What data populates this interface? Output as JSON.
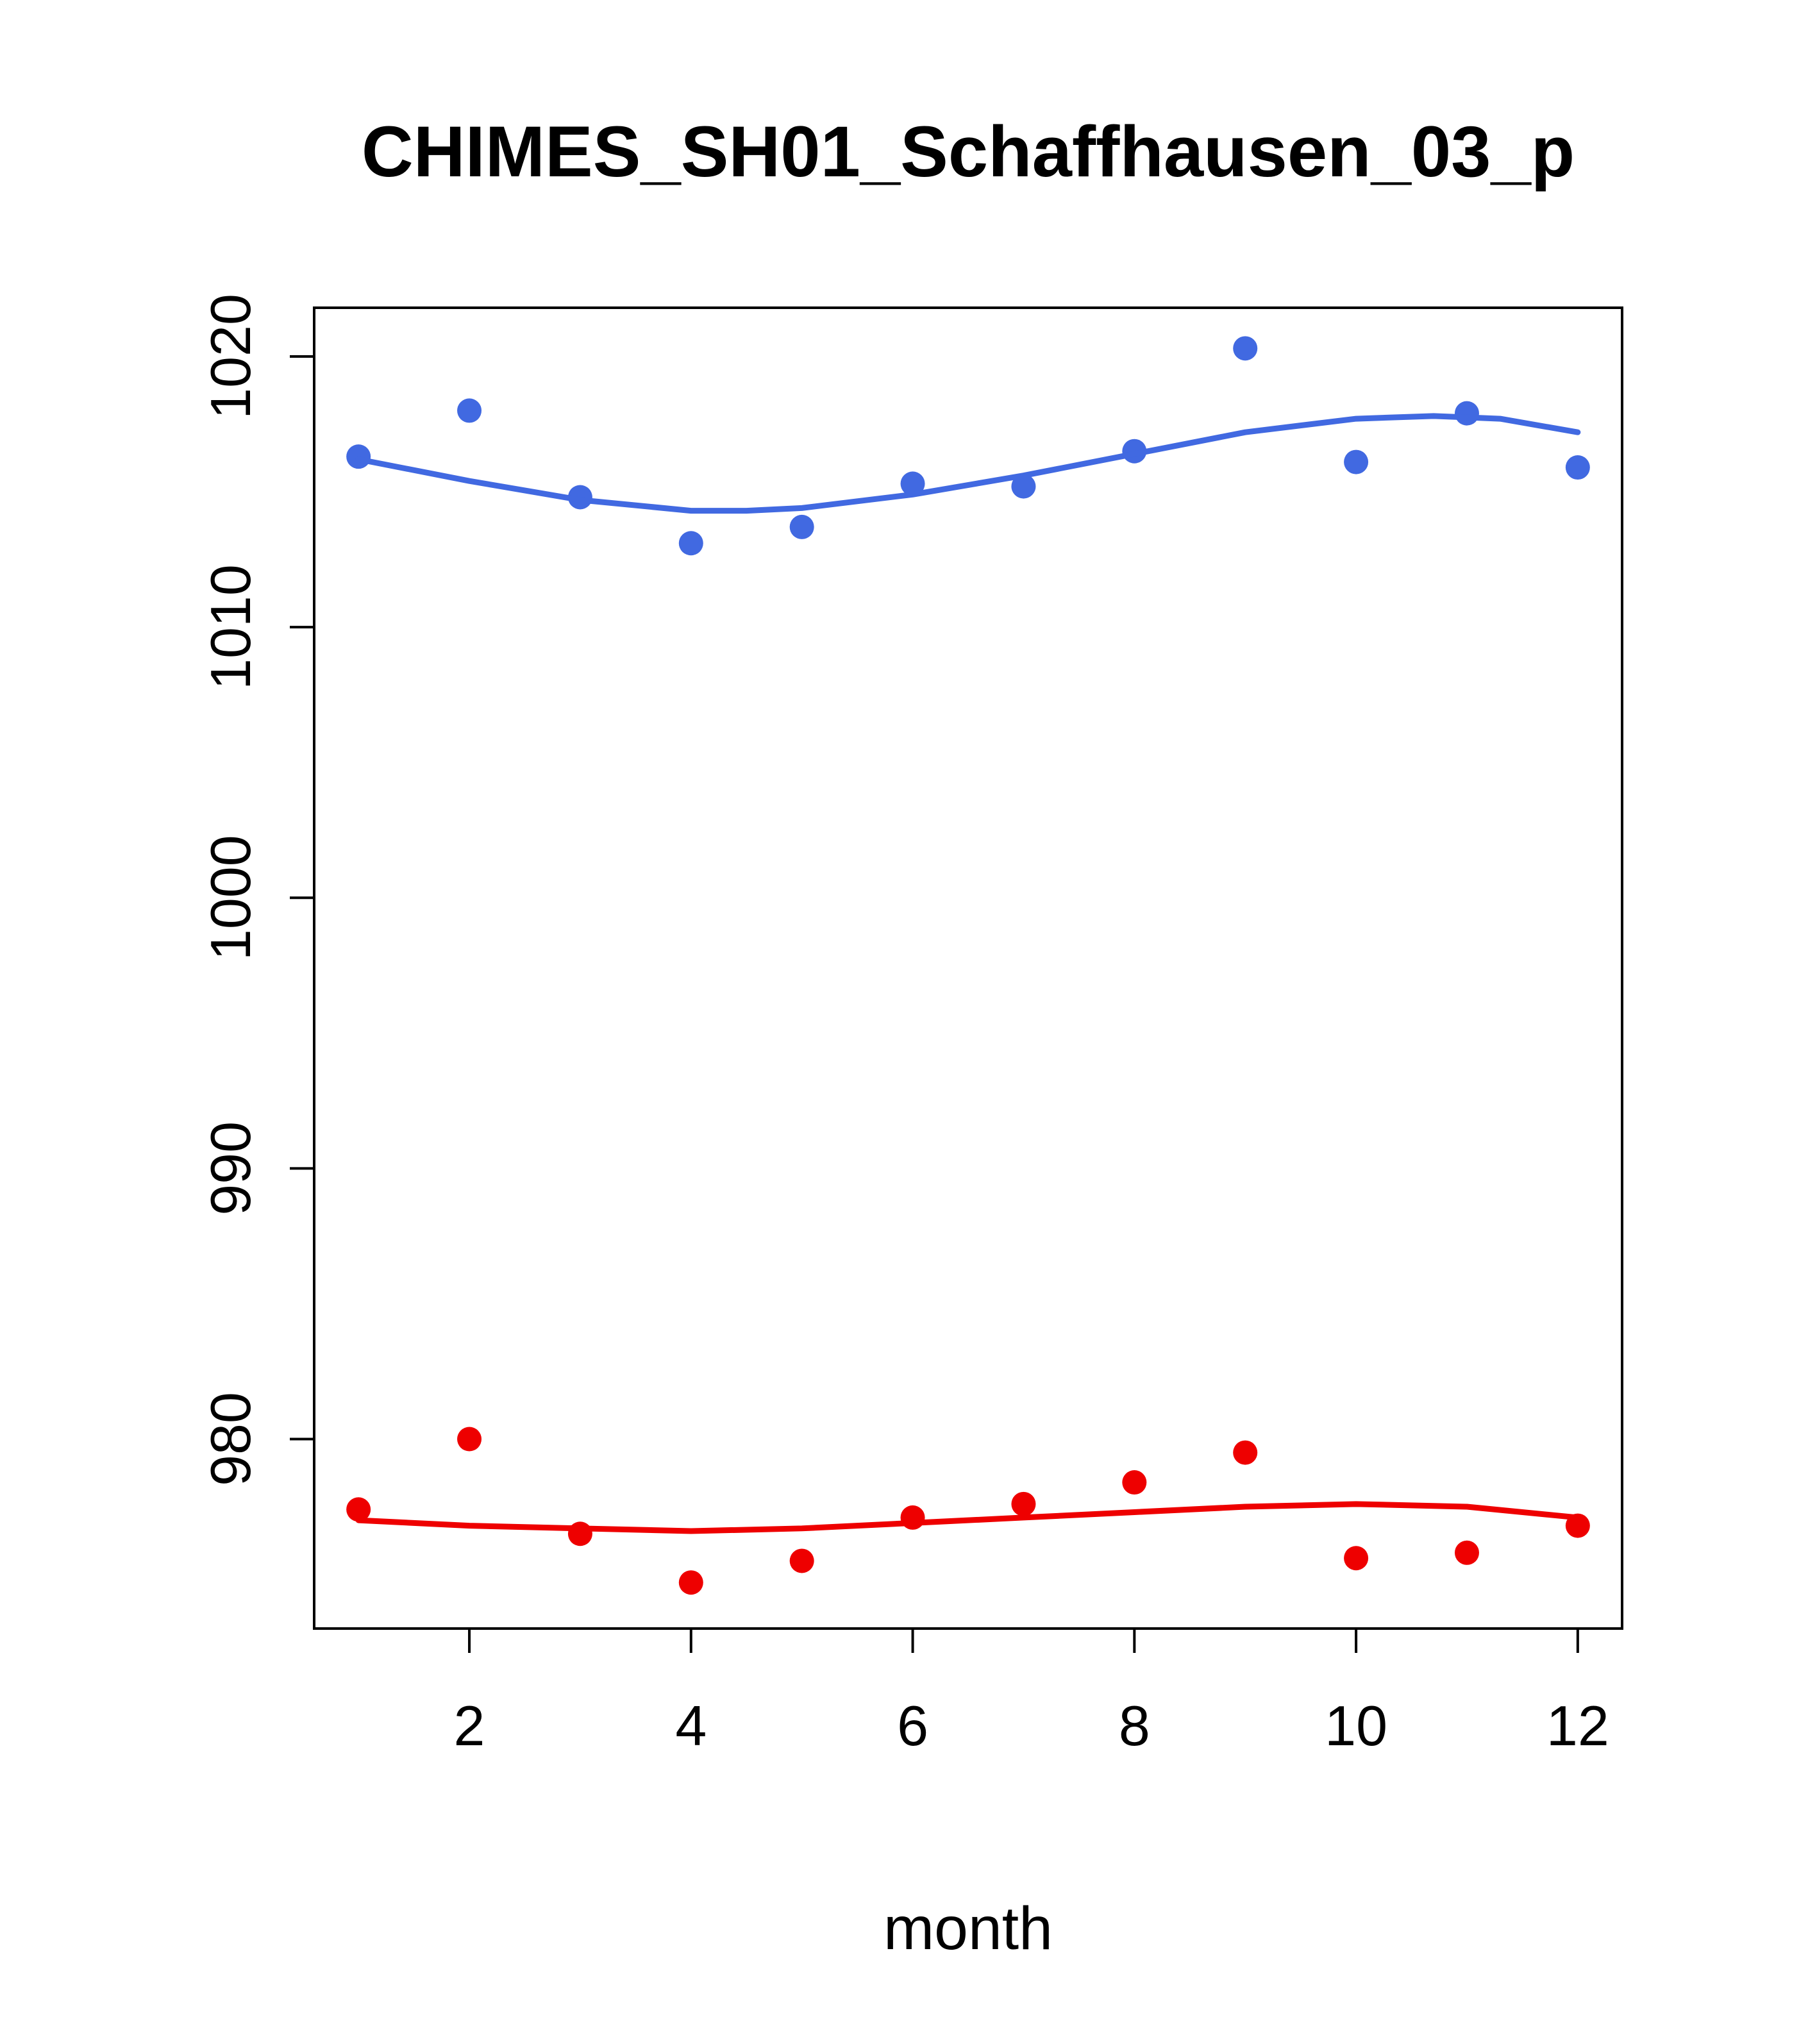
{
  "title": "CHIMES_SH01_Schaffhausen_03_p",
  "chart_data": {
    "type": "scatter",
    "title": "CHIMES_SH01_Schaffhausen_03_p",
    "xlabel": "month",
    "ylabel": "",
    "xlim": [
      0.6,
      12.4
    ],
    "ylim": [
      973,
      1021.8
    ],
    "x_ticks": [
      2,
      4,
      6,
      8,
      10,
      12
    ],
    "y_ticks": [
      980,
      990,
      1000,
      1010,
      1020
    ],
    "grid": false,
    "legend": null,
    "frame_color": "#000000",
    "series": [
      {
        "name": "upper-series-points",
        "kind": "points",
        "color": "#4169E1",
        "x": [
          1,
          2,
          3,
          4,
          5,
          6,
          7,
          8,
          9,
          10,
          11,
          12
        ],
        "y": [
          1016.3,
          1018.0,
          1014.8,
          1013.1,
          1013.7,
          1015.3,
          1015.2,
          1016.5,
          1020.3,
          1016.1,
          1017.9,
          1015.9
        ]
      },
      {
        "name": "upper-series-smooth-line",
        "kind": "line",
        "color": "#4169E1",
        "x": [
          1,
          2,
          3,
          4,
          4.5,
          5,
          6,
          7,
          8,
          9,
          10,
          10.7,
          11.3,
          12
        ],
        "y": [
          1016.2,
          1015.4,
          1014.7,
          1014.3,
          1014.3,
          1014.4,
          1014.9,
          1015.6,
          1016.4,
          1017.2,
          1017.7,
          1017.8,
          1017.7,
          1017.2
        ]
      },
      {
        "name": "lower-series-points",
        "kind": "points",
        "color": "#EE0000",
        "x": [
          1,
          2,
          3,
          4,
          5,
          6,
          7,
          8,
          9,
          10,
          11,
          12
        ],
        "y": [
          977.4,
          980.0,
          976.5,
          974.7,
          975.5,
          977.1,
          977.6,
          978.4,
          979.5,
          975.6,
          975.8,
          976.8
        ]
      },
      {
        "name": "lower-series-smooth-line",
        "kind": "line",
        "color": "#EE0000",
        "x": [
          1,
          2,
          3,
          4,
          5,
          6,
          7,
          8,
          9,
          10,
          11,
          12
        ],
        "y": [
          977.0,
          976.8,
          976.7,
          976.6,
          976.7,
          976.9,
          977.1,
          977.3,
          977.5,
          977.6,
          977.5,
          977.1
        ]
      }
    ]
  }
}
